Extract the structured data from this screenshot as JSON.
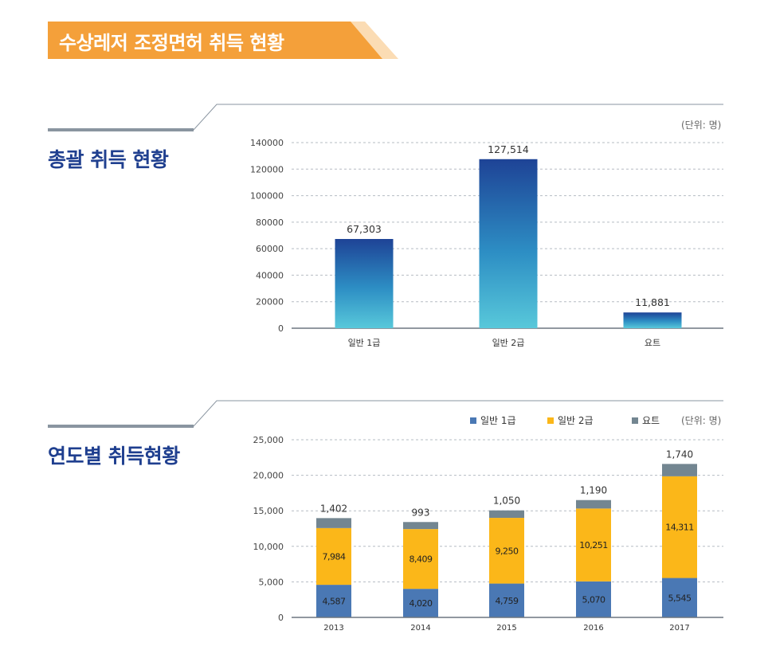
{
  "header": {
    "title": "수상레저 조정면허 취득 현황",
    "banner_color": "#f4a03a",
    "banner_tail_color": "#fbdcb4"
  },
  "sections": [
    {
      "title": "총괄 취득 현황",
      "unit": "(단위: 명)"
    },
    {
      "title": "연도별 취득현황",
      "unit": "(단위: 명)"
    }
  ],
  "colors": {
    "title_blue": "#1f3f8f",
    "bar_top": "#1e4396",
    "bar_bottom": "#58c8da",
    "general1": "#4a78b4",
    "general2": "#fbb719",
    "yacht": "#738691"
  },
  "chart_data": [
    {
      "type": "bar",
      "title": "총괄 취득 현황",
      "categories": [
        "일반 1급",
        "일반 2급",
        "요트"
      ],
      "values": [
        67303,
        127514,
        11881
      ],
      "value_labels": [
        "67,303",
        "127,514",
        "11,881"
      ],
      "yticks": [
        "0",
        "20000",
        "40000",
        "60000",
        "80000",
        "100000",
        "120000",
        "140000"
      ],
      "ylim": [
        0,
        140000
      ],
      "grid": true
    },
    {
      "type": "bar",
      "stacked": true,
      "title": "연도별 취득현황",
      "categories": [
        "2013",
        "2014",
        "2015",
        "2016",
        "2017"
      ],
      "series": [
        {
          "name": "일반 1급",
          "values": [
            4587,
            4020,
            4759,
            5070,
            5545
          ],
          "labels": [
            "4,587",
            "4,020",
            "4,759",
            "5,070",
            "5,545"
          ]
        },
        {
          "name": "일반 2급",
          "values": [
            7984,
            8409,
            9250,
            10251,
            14311
          ],
          "labels": [
            "7,984",
            "8,409",
            "9,250",
            "10,251",
            "14,311"
          ]
        },
        {
          "name": "요트",
          "values": [
            1402,
            993,
            1050,
            1190,
            1740
          ],
          "labels": [
            "1,402",
            "993",
            "1,050",
            "1,190",
            "1,740"
          ]
        }
      ],
      "yticks": [
        "0",
        "5,000",
        "10,000",
        "15,000",
        "20,000",
        "25,000"
      ],
      "ylim": [
        0,
        25000
      ],
      "legend": "top-right",
      "grid": true
    }
  ]
}
